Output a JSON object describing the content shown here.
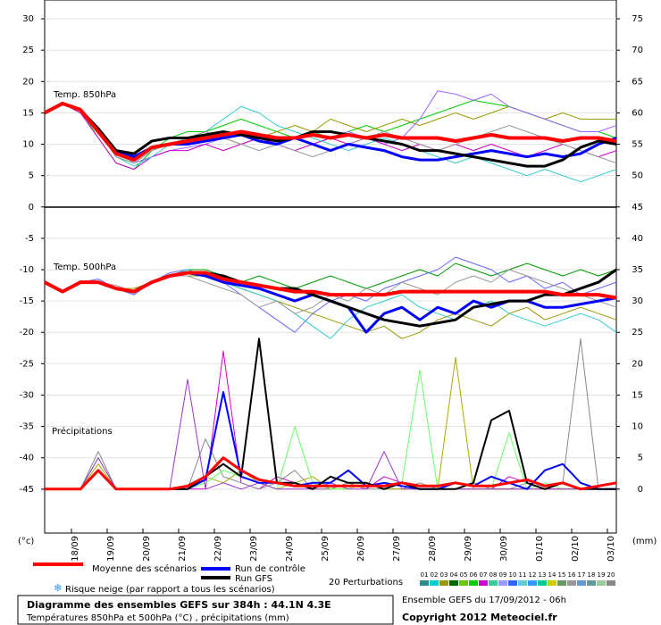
{
  "chart_data": {
    "type": "line",
    "panel_labels": [
      "Temp. 850hPa",
      "Temp. 500hPa",
      "Précipitations"
    ],
    "y_unit": "(°c)",
    "y2_unit": "(mm)",
    "xlim": [
      0,
      384
    ],
    "ylim": [
      -52,
      33
    ],
    "y2lim": [
      -7,
      78
    ],
    "grid": true,
    "x": [
      0,
      12,
      24,
      36,
      48,
      60,
      72,
      84,
      96,
      108,
      120,
      132,
      144,
      156,
      168,
      180,
      192,
      204,
      216,
      228,
      240,
      252,
      264,
      276,
      288,
      300,
      312,
      324,
      336,
      348,
      360,
      372,
      384
    ],
    "xticks": [
      {
        "value": 18,
        "label": "18/09"
      },
      {
        "value": 42,
        "label": "19/09"
      },
      {
        "value": 66,
        "label": "20/09"
      },
      {
        "value": 90,
        "label": "21/09"
      },
      {
        "value": 114,
        "label": "22/09"
      },
      {
        "value": 138,
        "label": "23/09"
      },
      {
        "value": 162,
        "label": "24/09"
      },
      {
        "value": 186,
        "label": "25/09"
      },
      {
        "value": 210,
        "label": "26/09"
      },
      {
        "value": 234,
        "label": "27/09"
      },
      {
        "value": 258,
        "label": "28/09"
      },
      {
        "value": 282,
        "label": "29/09"
      },
      {
        "value": 306,
        "label": "30/09"
      },
      {
        "value": 330,
        "label": "01/10"
      },
      {
        "value": 354,
        "label": "02/10"
      },
      {
        "value": 378,
        "label": "03/10"
      }
    ],
    "yticks": [
      30,
      25,
      20,
      15,
      10,
      5,
      0,
      -5,
      -10,
      -15,
      -20,
      -25,
      -30,
      -35,
      -40,
      -45
    ],
    "y2ticks": [
      75,
      70,
      65,
      60,
      55,
      50,
      45,
      40,
      35,
      30,
      25,
      20,
      15,
      10,
      5,
      0
    ],
    "series": [
      {
        "color": "#00cc00",
        "width": 1,
        "values": [
          15,
          16.5,
          15.5,
          11,
          7,
          6,
          9,
          11,
          12,
          12,
          13,
          14,
          13,
          12,
          11,
          12,
          11,
          12,
          13,
          12,
          13,
          14,
          15,
          16,
          17,
          16.5,
          16,
          15,
          14,
          13,
          12,
          12,
          11
        ]
      },
      {
        "color": "#999900",
        "width": 1,
        "values": [
          15,
          16.5,
          15,
          12,
          8,
          7,
          9,
          10,
          11,
          12,
          11,
          10,
          11,
          12,
          13,
          12,
          14,
          13,
          12,
          13,
          14,
          13,
          14,
          15,
          14,
          15,
          16,
          15,
          14,
          15,
          14,
          14,
          14
        ]
      },
      {
        "color": "#9966ff",
        "width": 1,
        "values": [
          15,
          16.5,
          15.5,
          12,
          9,
          7,
          8,
          9,
          9.5,
          10,
          11,
          12,
          11,
          10,
          11,
          10,
          11,
          12,
          11,
          10,
          11,
          14,
          18.5,
          18,
          17,
          18,
          16,
          15,
          14,
          13,
          12,
          12,
          13
        ]
      },
      {
        "color": "#cc00cc",
        "width": 1,
        "values": [
          15,
          16.5,
          15,
          11,
          7,
          6,
          8,
          9,
          9,
          10,
          9,
          10,
          11,
          10,
          9,
          10,
          11,
          10,
          11,
          10,
          9,
          10,
          9,
          10,
          9,
          10,
          9,
          8,
          9,
          10,
          9,
          8,
          9
        ]
      },
      {
        "color": "#33cccc",
        "width": 1,
        "values": [
          15,
          16.5,
          15.5,
          12,
          8,
          6.5,
          8,
          10,
          11,
          12,
          14,
          16,
          15,
          13,
          12,
          11,
          10,
          9,
          10,
          11,
          10,
          9,
          8,
          7,
          8,
          7,
          6,
          5,
          6,
          5,
          4,
          5,
          6
        ]
      },
      {
        "color": "#999999",
        "width": 1,
        "values": [
          15,
          16.5,
          15.5,
          12,
          8,
          7,
          9,
          10,
          11,
          12,
          11,
          10,
          9,
          10,
          9,
          8,
          9,
          10,
          11,
          12,
          11,
          10,
          9,
          10,
          11,
          12,
          13,
          12,
          11,
          10,
          9,
          8,
          7
        ]
      },
      {
        "color": "#0000ff",
        "width": 3,
        "values": [
          15,
          16.5,
          15.5,
          12,
          9,
          8,
          9.5,
          10,
          10,
          10.5,
          11,
          11.5,
          10.5,
          10,
          11,
          10,
          9,
          10,
          9.5,
          9,
          8,
          7.5,
          7.5,
          8,
          8.5,
          9,
          8.5,
          8,
          8.5,
          8,
          8.5,
          10,
          11
        ]
      },
      {
        "color": "#000000",
        "width": 3,
        "values": [
          15,
          16.5,
          15.5,
          12.5,
          9,
          8.5,
          10.5,
          11,
          11,
          11.5,
          12,
          11.5,
          11,
          10.5,
          11,
          12,
          12,
          11.5,
          11,
          10.5,
          10,
          9,
          9,
          8.5,
          8,
          7.5,
          7,
          6.5,
          6.5,
          7.5,
          9.5,
          10.5,
          10
        ]
      },
      {
        "color": "#ff0000",
        "width": 4,
        "values": [
          15,
          16.5,
          15.5,
          12,
          8.5,
          7.5,
          9.5,
          10,
          10.5,
          11,
          11.5,
          12,
          11.5,
          11,
          11,
          11.5,
          11,
          11.5,
          11,
          11.5,
          11,
          11,
          11,
          10.5,
          11,
          11.5,
          11,
          11,
          11,
          10.5,
          11,
          11,
          10.5
        ]
      },
      {
        "color": "#009900",
        "width": 1,
        "values": [
          -12,
          -13.5,
          -12,
          -12,
          -13,
          -14,
          -12,
          -11,
          -10,
          -10,
          -11,
          -12,
          -11,
          -12,
          -13,
          -12,
          -11,
          -12,
          -13,
          -12,
          -11,
          -10,
          -11,
          -9,
          -10,
          -11,
          -10,
          -9,
          -10,
          -11,
          -10,
          -11,
          -10
        ]
      },
      {
        "color": "#999900",
        "width": 1,
        "values": [
          -12,
          -13.5,
          -12,
          -12,
          -13,
          -13,
          -12,
          -11,
          -11,
          -11,
          -12,
          -13,
          -14,
          -15,
          -16,
          -17,
          -18,
          -19,
          -20,
          -19,
          -21,
          -20,
          -18,
          -17,
          -18,
          -19,
          -17,
          -16,
          -18,
          -17,
          -16,
          -17,
          -18
        ]
      },
      {
        "color": "#6666ff",
        "width": 1,
        "values": [
          -12,
          -13.5,
          -12,
          -11.5,
          -13,
          -14,
          -12,
          -10.5,
          -10,
          -11,
          -12,
          -14,
          -16,
          -18,
          -20,
          -17,
          -15,
          -14,
          -15,
          -13,
          -12,
          -11,
          -10,
          -8,
          -9,
          -10,
          -12,
          -11,
          -13,
          -12,
          -14,
          -13,
          -12
        ]
      },
      {
        "color": "#33cccc",
        "width": 1,
        "values": [
          -12,
          -13.5,
          -12,
          -12,
          -13,
          -13.5,
          -12,
          -11,
          -10,
          -11,
          -12,
          -13,
          -14,
          -15,
          -17,
          -19,
          -21,
          -18,
          -16,
          -15,
          -14,
          -16,
          -17,
          -18,
          -16,
          -15,
          -17,
          -18,
          -19,
          -18,
          -17,
          -18,
          -20
        ]
      },
      {
        "color": "#999999",
        "width": 1,
        "values": [
          -12,
          -13.5,
          -12,
          -12,
          -12.5,
          -13.5,
          -12,
          -11,
          -11,
          -12,
          -13,
          -14,
          -16,
          -15,
          -17,
          -16,
          -14,
          -15,
          -13,
          -14,
          -12,
          -13,
          -14,
          -12,
          -11,
          -12,
          -10,
          -11,
          -12,
          -13,
          -14,
          -15,
          -16
        ]
      },
      {
        "color": "#0000ff",
        "width": 3,
        "values": [
          -12,
          -13.5,
          -12,
          -12,
          -13,
          -13.5,
          -12,
          -11,
          -10.5,
          -11,
          -12,
          -12.5,
          -13,
          -14,
          -15,
          -14,
          -15,
          -16,
          -20,
          -17,
          -16,
          -18,
          -16,
          -17,
          -15,
          -16,
          -15,
          -15,
          -16,
          -16,
          -15.5,
          -15,
          -14.5
        ]
      },
      {
        "color": "#000000",
        "width": 3,
        "values": [
          -12,
          -13.5,
          -12,
          -12,
          -13,
          -13.5,
          -12,
          -11,
          -10.5,
          -10.5,
          -11,
          -12,
          -12.5,
          -13,
          -13,
          -14,
          -15,
          -16,
          -17,
          -18,
          -18.5,
          -19,
          -18.5,
          -18,
          -16,
          -15.5,
          -15,
          -15,
          -14,
          -14,
          -13,
          -12,
          -10
        ]
      },
      {
        "color": "#ff0000",
        "width": 4,
        "values": [
          -12,
          -13.5,
          -12,
          -12,
          -13,
          -13.5,
          -12,
          -11,
          -10.5,
          -10.5,
          -11.5,
          -12,
          -12.5,
          -13,
          -13.5,
          -13.5,
          -14,
          -14,
          -14,
          -14,
          -13.5,
          -13.5,
          -13.5,
          -13.5,
          -13.5,
          -13.5,
          -13.5,
          -13.5,
          -13.5,
          -14,
          -14,
          -14,
          -14.5
        ]
      },
      {
        "color": "#cc00cc",
        "width": 1,
        "axis": "y2",
        "values": [
          0,
          0,
          0,
          3,
          0,
          0,
          0,
          0,
          0,
          0,
          22,
          1,
          0,
          2,
          1,
          0,
          0,
          1,
          0,
          2,
          1,
          0,
          0,
          0,
          0,
          0,
          2,
          1,
          0,
          0,
          0,
          0,
          0
        ]
      },
      {
        "color": "#888888",
        "width": 1,
        "axis": "y2",
        "values": [
          0,
          0,
          0,
          6,
          0,
          0,
          0,
          0,
          0,
          8,
          2,
          1,
          0,
          1,
          3,
          0,
          0,
          1,
          0,
          0,
          0,
          1,
          0,
          0,
          1,
          0,
          0,
          1,
          0,
          1,
          24,
          0,
          0
        ]
      },
      {
        "color": "#aaaa00",
        "width": 1,
        "axis": "y2",
        "values": [
          0,
          0,
          0,
          4,
          0,
          0,
          0,
          0,
          0,
          2,
          1,
          3,
          1,
          0,
          1,
          2,
          0,
          0,
          1,
          0,
          0,
          0,
          0,
          21,
          0,
          0,
          0,
          0,
          0,
          0,
          0,
          0,
          0
        ]
      },
      {
        "color": "#66ff66",
        "width": 1,
        "axis": "y2",
        "values": [
          0,
          0,
          0,
          5,
          0,
          0,
          0,
          0,
          0,
          1,
          3,
          2,
          1,
          0,
          10,
          1,
          0,
          0,
          1,
          0,
          1,
          19,
          0,
          0,
          0,
          0,
          9,
          0,
          1,
          0,
          0,
          0,
          0
        ]
      },
      {
        "color": "#9933cc",
        "width": 1,
        "axis": "y2",
        "values": [
          0,
          0,
          0,
          5,
          0,
          0,
          0,
          0,
          17.5,
          0,
          1,
          0,
          1,
          0,
          0,
          0,
          1,
          0,
          0,
          6,
          0,
          0,
          0,
          0,
          0,
          0,
          0,
          0,
          0,
          0,
          0,
          0,
          0
        ]
      },
      {
        "color": "#0000ff",
        "width": 2,
        "axis": "y2",
        "values": [
          0,
          0,
          0,
          3,
          0,
          0,
          0,
          0,
          0,
          1.5,
          15.5,
          2,
          1,
          1,
          0.5,
          1,
          1,
          3,
          0.5,
          1,
          0.5,
          0,
          0,
          1,
          0.5,
          2,
          1,
          0,
          3,
          4,
          1,
          0,
          0
        ]
      },
      {
        "color": "#000000",
        "width": 2,
        "axis": "y2",
        "values": [
          0,
          0,
          0,
          3,
          0,
          0,
          0,
          0,
          0,
          2,
          4,
          2,
          24,
          1,
          1,
          0,
          2,
          1,
          1,
          0,
          1,
          0,
          0,
          0,
          1,
          11,
          12.5,
          1,
          0,
          1,
          0,
          0,
          0
        ]
      },
      {
        "color": "#ff0000",
        "width": 3,
        "axis": "y2",
        "values": [
          0,
          0,
          0,
          3,
          0,
          0,
          0,
          0,
          0.5,
          2,
          5,
          3,
          1.5,
          1,
          0.5,
          0.5,
          0.5,
          0.5,
          0.5,
          0.5,
          1,
          0.5,
          0.5,
          1,
          0.5,
          0.5,
          1,
          1.5,
          0.5,
          1,
          0,
          0.5,
          1
        ]
      }
    ],
    "legend": [
      {
        "name": "Moyenne des scénarios",
        "color": "#ff0000"
      },
      {
        "name": "Run de contrôle",
        "color": "#0000ff"
      },
      {
        "name": "Run GFS",
        "color": "#000000"
      }
    ],
    "snow_note": "Risque neige (par rapport a tous les scénarios)",
    "perturbations_label": "20 Perturbations",
    "perturbations": [
      {
        "name": "01",
        "color": "#2e8b8b"
      },
      {
        "name": "02",
        "color": "#00cccc"
      },
      {
        "name": "03",
        "color": "#999900"
      },
      {
        "name": "04",
        "color": "#006600"
      },
      {
        "name": "05",
        "color": "#66cc00"
      },
      {
        "name": "06",
        "color": "#00cc00"
      },
      {
        "name": "07",
        "color": "#cc00cc"
      },
      {
        "name": "08",
        "color": "#33cc99"
      },
      {
        "name": "09",
        "color": "#9999ff"
      },
      {
        "name": "10",
        "color": "#3366ff"
      },
      {
        "name": "11",
        "color": "#66cccc"
      },
      {
        "name": "12",
        "color": "#3399ff"
      },
      {
        "name": "13",
        "color": "#00cc99"
      },
      {
        "name": "14",
        "color": "#cccc00"
      },
      {
        "name": "15",
        "color": "#669966"
      },
      {
        "name": "16",
        "color": "#999999"
      },
      {
        "name": "17",
        "color": "#6699cc"
      },
      {
        "name": "18",
        "color": "#669999"
      },
      {
        "name": "19",
        "color": "#99cc99"
      },
      {
        "name": "20",
        "color": "#888888"
      }
    ],
    "run_info": "Ensemble GEFS du 17/09/2012 - 06h",
    "copyright": "Copyright 2012 Meteociel.fr",
    "title": "Diagramme des ensembles GEFS sur 384h : 44.1N 4.3E",
    "subtitle": "Températures 850hPa et 500hPa (°C) , précipitations (mm)"
  }
}
